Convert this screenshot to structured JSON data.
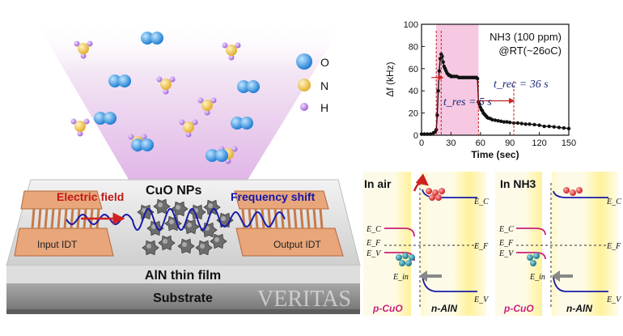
{
  "figure": {
    "watermark": "VERITAS"
  },
  "legend": {
    "items": [
      {
        "symbol": "O",
        "color": "#1e90e0"
      },
      {
        "symbol": "N",
        "color": "#f0c43a"
      },
      {
        "symbol": "H",
        "color": "#b07ae0"
      }
    ]
  },
  "device": {
    "nanoparticles_label": "CuO NPs",
    "electric_field_label": "Electric field",
    "frequency_shift_label": "Frequency shift",
    "input_idt_label": "Input IDT",
    "output_idt_label": "Output IDT",
    "film_label": "AlN thin film",
    "substrate_label": "Substrate"
  },
  "chart_data": {
    "type": "line",
    "xlabel": "Time (sec)",
    "ylabel": "Δf (kHz)",
    "xlim": [
      0,
      150
    ],
    "ylim": [
      0,
      100
    ],
    "xticks": [
      0,
      30,
      60,
      90,
      120,
      150
    ],
    "yticks": [
      0,
      20,
      40,
      60,
      80,
      100
    ],
    "gas_label": "NH3 (100 ppm)",
    "condition_label": "@RT(~26oC)",
    "exposure_window": [
      15,
      58
    ],
    "t_res_label": "t_res = 5 s",
    "t_rec_label": "t_rec = 36 s",
    "t_res_marker": [
      15,
      20
    ],
    "t_rec_marker": [
      58,
      94
    ],
    "series": [
      {
        "x": [
          0,
          3,
          6,
          9,
          12,
          14,
          15,
          16,
          17,
          18,
          19,
          20,
          21,
          22,
          23,
          24,
          25,
          26,
          27,
          28,
          29,
          30,
          31,
          32,
          34,
          36,
          38,
          40,
          42,
          44,
          46,
          48,
          50,
          52,
          54,
          56,
          57,
          58,
          59,
          60,
          61,
          62,
          63,
          64,
          65,
          66,
          67,
          68,
          70,
          72,
          75,
          78,
          81,
          84,
          87,
          90,
          94,
          98,
          102,
          106,
          110,
          115,
          120,
          125,
          130,
          135,
          140,
          145,
          150
        ],
        "y": [
          1,
          1,
          1,
          1,
          2,
          3,
          5,
          18,
          40,
          58,
          69,
          73,
          71,
          66,
          62,
          60,
          58,
          56,
          55,
          54,
          54,
          53,
          53,
          53,
          53,
          53,
          52,
          52,
          52,
          52,
          52,
          52,
          52,
          52,
          52,
          52,
          51,
          30,
          28,
          25,
          23,
          22,
          20,
          19,
          18,
          17,
          16,
          15.5,
          15,
          14,
          13.5,
          13,
          12.5,
          12,
          12,
          11.5,
          11,
          11,
          10.5,
          10,
          10,
          9.5,
          9,
          8,
          8,
          7.5,
          7,
          6.5,
          6
        ]
      }
    ]
  },
  "band_diagram": {
    "air_label": "In air",
    "nh3_label": "In NH3",
    "ec_label": "E_C",
    "ef_label": "E_F",
    "ev_label": "E_V",
    "ein_label": "E_in",
    "p_label": "p-CuO",
    "n_label": "n-AlN"
  }
}
